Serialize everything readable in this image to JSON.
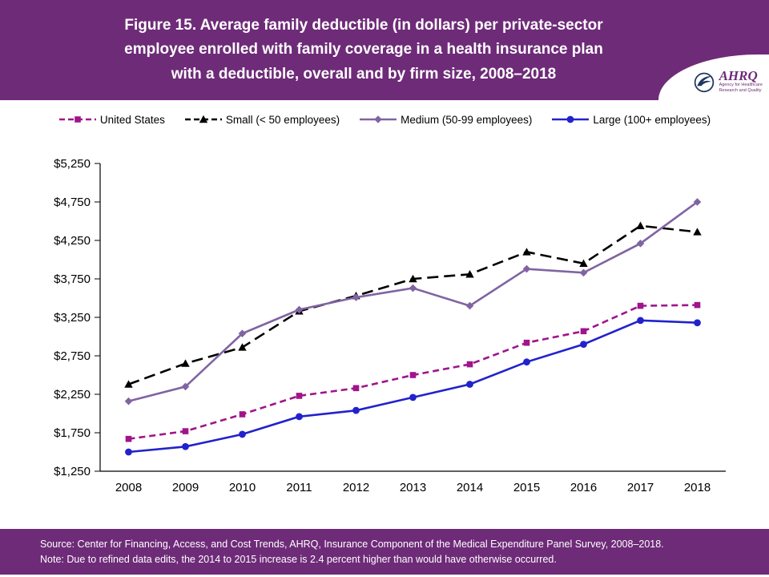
{
  "header": {
    "title_lines": [
      "Figure 15. Average family deductible (in dollars) per private-sector",
      "employee enrolled with family coverage in a health insurance plan",
      "with a deductible, overall and by firm size, 2008–2018"
    ],
    "background_color": "#6E2B78",
    "logo": {
      "wordmark": "AHRQ",
      "tagline_lines": [
        "Agency for Healthcare",
        "Research and Quality"
      ]
    }
  },
  "chart_data": {
    "type": "line",
    "title": "Average family deductible (in dollars) per private-sector employee enrolled with family coverage in a health insurance plan with a deductible, overall and by firm size, 2008–2018",
    "categories": [
      "2008",
      "2009",
      "2010",
      "2011",
      "2012",
      "2013",
      "2014",
      "2015",
      "2016",
      "2017",
      "2018"
    ],
    "xlabel": "",
    "ylabel": "",
    "ylim": [
      1250,
      5250
    ],
    "ytick_values": [
      1250,
      1750,
      2250,
      2750,
      3250,
      3750,
      4250,
      4750,
      5250
    ],
    "ytick_labels": [
      "$1,250",
      "$1,750",
      "$2,250",
      "$2,750",
      "$3,250",
      "$3,750",
      "$4,250",
      "$4,750",
      "$5,250"
    ],
    "grid": false,
    "legend_position": "top",
    "series": [
      {
        "name": "United States",
        "color": "#A0148C",
        "dash": "8 5",
        "marker": "square",
        "values": [
          1670,
          1770,
          1990,
          2230,
          2330,
          2500,
          2640,
          2920,
          3070,
          3400,
          3410
        ]
      },
      {
        "name": "Small (< 50 employees)",
        "color": "#000000",
        "dash": "14 7",
        "marker": "triangle",
        "values": [
          2380,
          2650,
          2860,
          3330,
          3530,
          3750,
          3810,
          4100,
          3950,
          4440,
          4360
        ]
      },
      {
        "name": "Medium (50-99 employees)",
        "color": "#8064A2",
        "dash": "",
        "marker": "diamond",
        "values": [
          2160,
          2350,
          3040,
          3350,
          3510,
          3630,
          3400,
          3880,
          3830,
          4210,
          4750
        ]
      },
      {
        "name": "Large (100+ employees)",
        "color": "#2222CC",
        "dash": "",
        "marker": "circle",
        "values": [
          1500,
          1570,
          1730,
          1960,
          2040,
          2210,
          2380,
          2670,
          2900,
          3210,
          3180
        ]
      }
    ]
  },
  "footer": {
    "source": "Source: Center for Financing, Access, and Cost Trends, AHRQ, Insurance Component of the Medical Expenditure Panel Survey, 2008–2018.",
    "note": "Note: Due to refined data edits, the 2014 to 2015 increase is 2.4 percent higher than would have otherwise occurred."
  }
}
